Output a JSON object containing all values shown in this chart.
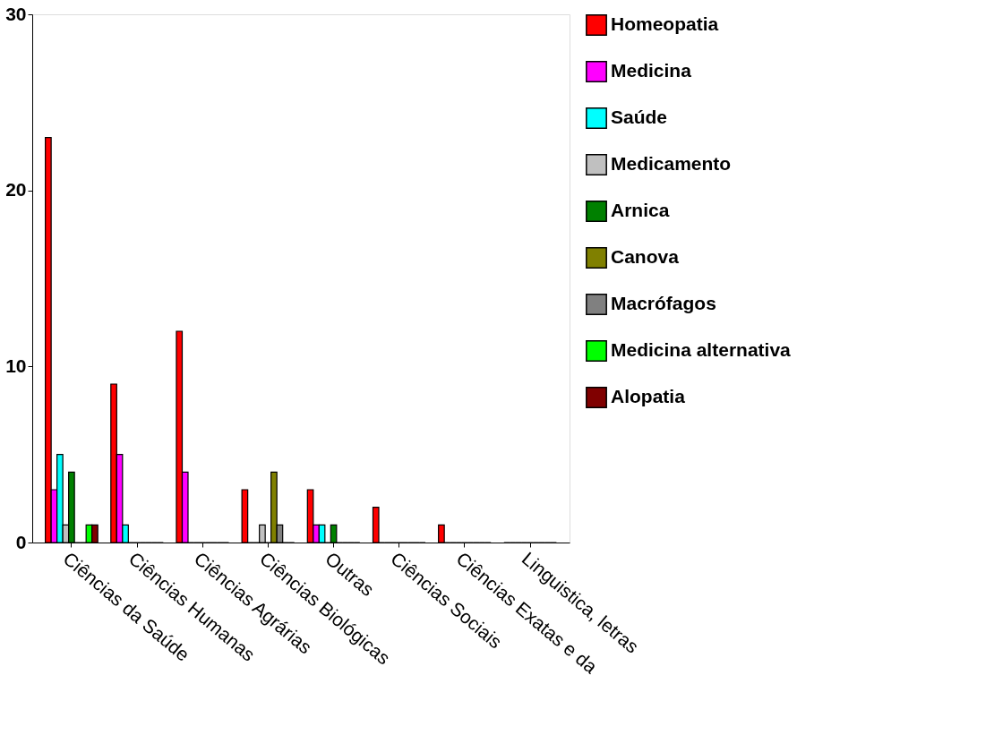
{
  "chart_data": {
    "type": "bar",
    "categories": [
      "Ciências da Saúde",
      "Ciências Humanas",
      "Ciências Agrárias",
      "Ciências Biológicas",
      "Outras",
      "Ciências Sociais",
      "Ciências Exatas e da",
      "Linguistica, letras"
    ],
    "series": [
      {
        "name": "Homeopatia",
        "color": "#ff0000",
        "values": [
          23,
          9,
          12,
          3,
          3,
          2,
          1,
          0
        ]
      },
      {
        "name": "Medicina",
        "color": "#ff00ff",
        "values": [
          3,
          5,
          4,
          0,
          1,
          0,
          0,
          0
        ]
      },
      {
        "name": "Saúde",
        "color": "#00ffff",
        "values": [
          5,
          1,
          0,
          0,
          1,
          0,
          0,
          0
        ]
      },
      {
        "name": "Medicamento",
        "color": "#c0c0c0",
        "values": [
          1,
          0,
          0,
          1,
          0,
          0,
          0,
          0
        ]
      },
      {
        "name": "Arnica",
        "color": "#008000",
        "values": [
          4,
          0,
          0,
          0,
          1,
          0,
          0,
          0
        ]
      },
      {
        "name": "Canova",
        "color": "#808000",
        "values": [
          0,
          0,
          0,
          4,
          0,
          0,
          0,
          0
        ]
      },
      {
        "name": "Macrófagos",
        "color": "#808080",
        "values": [
          0,
          0,
          0,
          1,
          0,
          0,
          0,
          0
        ]
      },
      {
        "name": "Medicina alternativa",
        "color": "#00ff00",
        "values": [
          1,
          0,
          0,
          0,
          0,
          0,
          0,
          0
        ]
      },
      {
        "name": "Alopatia",
        "color": "#800000",
        "values": [
          1,
          0,
          0,
          0,
          0,
          0,
          0,
          0
        ]
      }
    ],
    "ylim": [
      0,
      30
    ],
    "yticks": [
      0,
      10,
      20,
      30
    ],
    "grid": false,
    "legend": "right"
  }
}
